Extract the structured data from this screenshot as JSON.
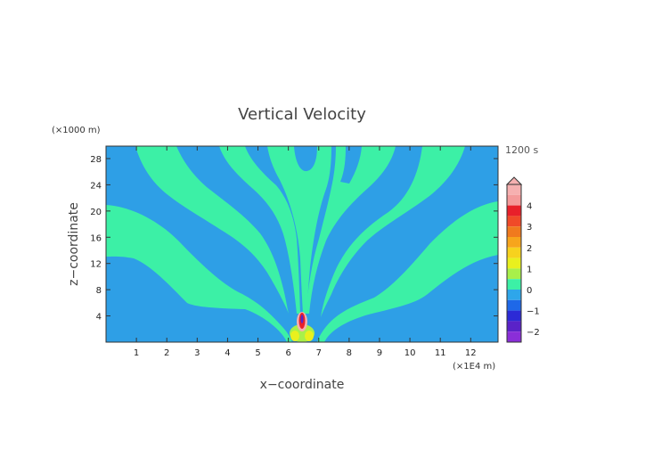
{
  "chart_data": {
    "type": "heatmap",
    "title": "Vertical Velocity",
    "time_label": "1200 s",
    "xlabel": "x−coordinate",
    "ylabel": "z−coordinate",
    "x_unit": "(×1E4 m)",
    "y_unit": "(×1000 m)",
    "xlim": [
      0,
      12.9
    ],
    "ylim": [
      0,
      29.9
    ],
    "x_ticks": [
      "1",
      "2",
      "3",
      "4",
      "5",
      "6",
      "7",
      "8",
      "9",
      "10",
      "11",
      "12"
    ],
    "y_ticks": [
      "4",
      "8",
      "12",
      "16",
      "20",
      "24",
      "28"
    ],
    "background_color": "#2e9fe6",
    "positive_band_color": "#3cf0a6",
    "colorbar": {
      "ticks": [
        "4",
        "3",
        "2",
        "1",
        "0",
        "−1",
        "−2"
      ],
      "bands": [
        {
          "min": 4.5,
          "max": 5.0,
          "color": "#f6b0b0"
        },
        {
          "min": 4.0,
          "max": 4.5,
          "color": "#f49a9a"
        },
        {
          "min": 3.5,
          "max": 4.0,
          "color": "#e8202a"
        },
        {
          "min": 3.0,
          "max": 3.5,
          "color": "#f04a28"
        },
        {
          "min": 2.5,
          "max": 3.0,
          "color": "#f07a1e"
        },
        {
          "min": 2.0,
          "max": 2.5,
          "color": "#f7a51c"
        },
        {
          "min": 1.5,
          "max": 2.0,
          "color": "#f7d21e"
        },
        {
          "min": 1.0,
          "max": 1.5,
          "color": "#e9f01e"
        },
        {
          "min": 0.5,
          "max": 1.0,
          "color": "#a8f04a"
        },
        {
          "min": 0.0,
          "max": 0.5,
          "color": "#3cf0a6"
        },
        {
          "min": -0.5,
          "max": 0.0,
          "color": "#2ea6ea"
        },
        {
          "min": -1.0,
          "max": -0.5,
          "color": "#1e68e8"
        },
        {
          "min": -1.5,
          "max": -1.0,
          "color": "#2c2ad6"
        },
        {
          "min": -2.0,
          "max": -1.5,
          "color": "#5a22c8"
        },
        {
          "min": -2.5,
          "max": -2.0,
          "color": "#8a2ed8"
        }
      ]
    },
    "core": {
      "x": 6.4,
      "z_bottom": 0.0,
      "z_top": 4.8,
      "max_value": 4.5
    }
  }
}
